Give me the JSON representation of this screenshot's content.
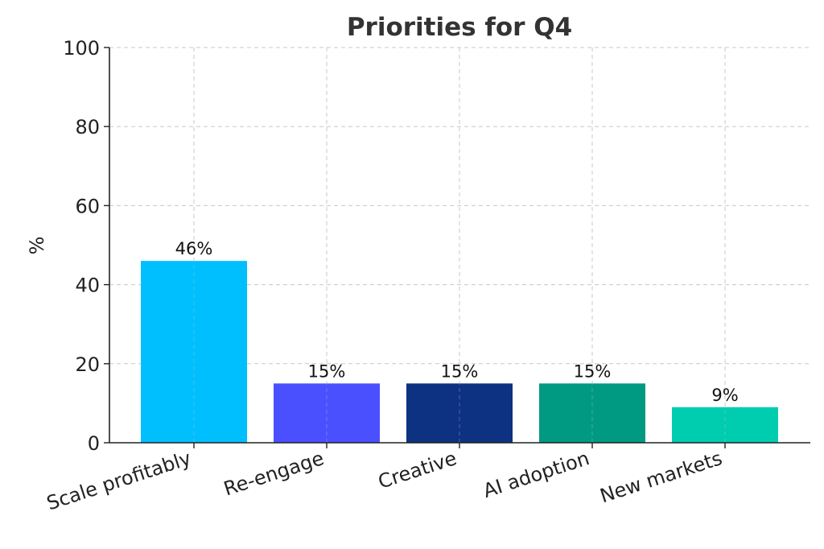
{
  "chart_data": {
    "type": "bar",
    "title": "Priorities for Q4",
    "xlabel": "",
    "ylabel": "%",
    "ylim": [
      0,
      100
    ],
    "yticks": [
      0,
      20,
      40,
      60,
      80,
      100
    ],
    "grid": true,
    "categories": [
      "Scale profitably",
      "Re-engage",
      "Creative",
      "AI adoption",
      "New markets"
    ],
    "values": [
      46,
      15,
      15,
      15,
      9
    ],
    "data_labels": [
      "46%",
      "15%",
      "15%",
      "15%",
      "9%"
    ],
    "colors": [
      "#00BFFF",
      "#4B50FF",
      "#0D3282",
      "#009A82",
      "#00CDB0"
    ]
  }
}
